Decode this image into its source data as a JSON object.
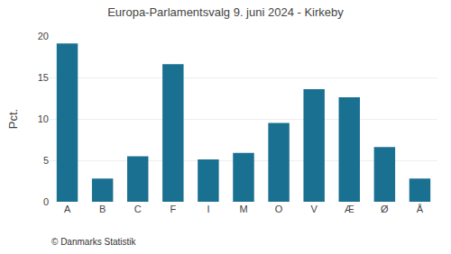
{
  "chart_data": {
    "type": "bar",
    "title": "Europa-Parlamentsvalg 9. juni 2024 - Kirkeby",
    "categories": [
      "A",
      "B",
      "C",
      "F",
      "I",
      "M",
      "O",
      "V",
      "Æ",
      "Ø",
      "Å"
    ],
    "values": [
      19.1,
      2.8,
      5.5,
      16.6,
      5.1,
      5.9,
      9.5,
      13.6,
      12.6,
      6.6,
      2.8
    ],
    "color": "#1a7090",
    "ylabel": "Pct.",
    "ylim": [
      0,
      20
    ],
    "yticks": [
      0,
      5,
      10,
      15,
      20
    ],
    "grid": true,
    "annotations": [
      "© Danmarks Statistik"
    ]
  }
}
